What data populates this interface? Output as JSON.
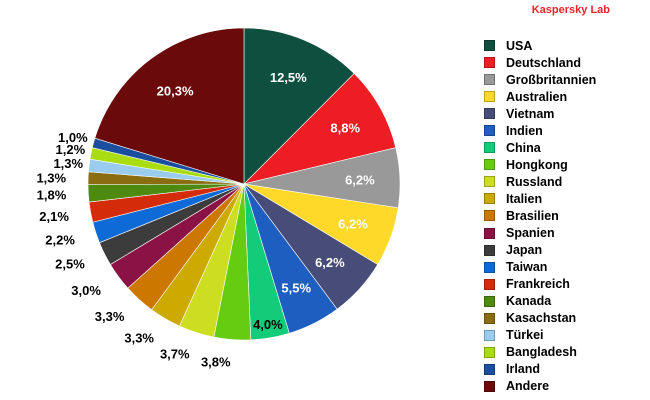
{
  "brand": "Kaspersky Lab",
  "chart_data": {
    "type": "pie",
    "start_angle_deg": 0,
    "direction": "clockwise",
    "legend_position": "right",
    "slices": [
      {
        "label": "USA",
        "value": 12.5,
        "display": "12,5%",
        "color": "#0f4f3f"
      },
      {
        "label": "Deutschland",
        "value": 8.8,
        "display": "8,8%",
        "color": "#ee1d23"
      },
      {
        "label": "Großbritannien",
        "value": 6.2,
        "display": "6,2%",
        "color": "#999999"
      },
      {
        "label": "Australien",
        "value": 6.2,
        "display": "6,2%",
        "color": "#ffd92a"
      },
      {
        "label": "Vietnam",
        "value": 6.2,
        "display": "6,2%",
        "color": "#484c78"
      },
      {
        "label": "Indien",
        "value": 5.5,
        "display": "5,5%",
        "color": "#1e5ec0"
      },
      {
        "label": "China",
        "value": 4.0,
        "display": "4,0%",
        "color": "#12cc7a"
      },
      {
        "label": "Hongkong",
        "value": 3.8,
        "display": "3,8%",
        "color": "#66cc11"
      },
      {
        "label": "Russland",
        "value": 3.7,
        "display": "3,7%",
        "color": "#ccdd22"
      },
      {
        "label": "Italien",
        "value": 3.3,
        "display": "3,3%",
        "color": "#ccaa00"
      },
      {
        "label": "Brasilien",
        "value": 3.3,
        "display": "3,3%",
        "color": "#cc7700"
      },
      {
        "label": "Spanien",
        "value": 3.0,
        "display": "3,0%",
        "color": "#8b1245"
      },
      {
        "label": "Japan",
        "value": 2.5,
        "display": "2,5%",
        "color": "#3c3c3c"
      },
      {
        "label": "Taiwan",
        "value": 2.2,
        "display": "2,2%",
        "color": "#0d6ad6"
      },
      {
        "label": "Frankreich",
        "value": 2.1,
        "display": "2,1%",
        "color": "#d42b0b"
      },
      {
        "label": " Kanada",
        "value": 1.8,
        "display": "1,8%",
        "color": "#4f8a10"
      },
      {
        "label": "Kasachstan",
        "value": 1.3,
        "display": "1,3%",
        "color": "#8a6d10"
      },
      {
        "label": "Türkei",
        "value": 1.3,
        "display": "1,3%",
        "color": "#99ccee"
      },
      {
        "label": "Bangladesh",
        "value": 1.2,
        "display": "1,2%",
        "color": "#aadd11"
      },
      {
        "label": "Irland",
        "value": 1.0,
        "display": "1,0%",
        "color": "#1a4fa0"
      },
      {
        "label": "Andere",
        "value": 20.3,
        "display": "20,3%",
        "color": "#6b0a0a"
      }
    ]
  }
}
